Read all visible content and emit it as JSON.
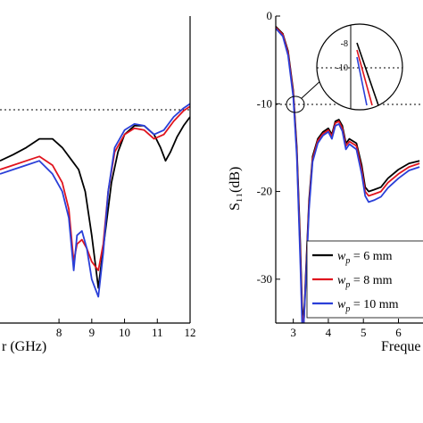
{
  "chart_data": [
    {
      "type": "line",
      "title": "",
      "xlabel": "r (GHz)",
      "ylabel": "",
      "xlim": [
        6.2,
        12
      ],
      "ylim": [
        -35,
        0
      ],
      "x_ticks": [
        "8",
        "9",
        "10",
        "11",
        "12"
      ],
      "y_ticks": [],
      "reference_line": {
        "y": -10,
        "style": "dotted"
      },
      "grid": false,
      "series": [
        {
          "key": "a_black",
          "color": "#000000",
          "x": [
            6.2,
            6.6,
            7.0,
            7.4,
            7.8,
            8.1,
            8.4,
            8.6,
            8.8,
            9.0,
            9.2,
            9.4,
            9.6,
            9.8,
            10.0,
            10.3,
            10.6,
            10.9,
            11.1,
            11.25,
            11.4,
            11.6,
            11.8,
            12.0
          ],
          "y": [
            -16.5,
            -15.8,
            -15.0,
            -14.0,
            -14.0,
            -15.0,
            -16.5,
            -17.5,
            -20.0,
            -25.0,
            -31.0,
            -25.0,
            -19.0,
            -15.5,
            -13.5,
            -12.5,
            -12.5,
            -13.5,
            -15.0,
            -16.5,
            -15.5,
            -13.8,
            -12.5,
            -11.5
          ]
        },
        {
          "key": "a_red",
          "color": "#e0141e",
          "x": [
            6.2,
            6.6,
            7.0,
            7.4,
            7.8,
            8.1,
            8.3,
            8.45,
            8.55,
            8.7,
            8.85,
            9.0,
            9.2,
            9.35,
            9.5,
            9.7,
            10.0,
            10.3,
            10.6,
            10.9,
            11.2,
            11.5,
            11.8,
            12.0
          ],
          "y": [
            -17.5,
            -17.0,
            -16.5,
            -16.0,
            -17.0,
            -19.0,
            -22.0,
            -28.0,
            -26.0,
            -25.5,
            -26.5,
            -28.0,
            -29.0,
            -26.0,
            -20.0,
            -15.5,
            -13.5,
            -12.8,
            -13.0,
            -14.0,
            -13.5,
            -12.0,
            -10.8,
            -10.3
          ]
        },
        {
          "key": "a_blue",
          "color": "#2a3fd8",
          "x": [
            6.2,
            6.6,
            7.0,
            7.4,
            7.8,
            8.1,
            8.3,
            8.45,
            8.55,
            8.7,
            8.85,
            9.0,
            9.2,
            9.35,
            9.5,
            9.7,
            10.0,
            10.3,
            10.6,
            10.9,
            11.2,
            11.5,
            11.8,
            12.0
          ],
          "y": [
            -18.0,
            -17.5,
            -17.0,
            -16.5,
            -18.0,
            -20.0,
            -23.0,
            -29.0,
            -25.0,
            -24.5,
            -26.5,
            -30.0,
            -32.0,
            -27.0,
            -20.0,
            -15.0,
            -13.0,
            -12.3,
            -12.5,
            -13.5,
            -13.0,
            -11.5,
            -10.5,
            -10.0
          ]
        }
      ]
    },
    {
      "type": "line",
      "title": "",
      "xlabel": "Freque",
      "ylabel": "S₁₁(dB)",
      "xlim": [
        2.5,
        6.7
      ],
      "ylim": [
        -35,
        0
      ],
      "x_ticks": [
        "3",
        "4",
        "5",
        "6"
      ],
      "y_ticks": [
        "0",
        "-10",
        "-20",
        "-30"
      ],
      "reference_line": {
        "y": -10,
        "style": "dotted"
      },
      "grid": false,
      "legend": {
        "position": "bottom-right",
        "entries": [
          {
            "label_main": "w",
            "label_sub": "p",
            "label_rest": " = 6 mm",
            "color": "#000000"
          },
          {
            "label_main": "w",
            "label_sub": "p",
            "label_rest": " = 8 mm",
            "color": "#e0141e"
          },
          {
            "label_main": "w",
            "label_sub": "p",
            "label_rest": " = 10 mm",
            "color": "#2a3fd8"
          }
        ]
      },
      "inset": {
        "y_ticks": [
          "-8",
          "-10"
        ],
        "shape": "circle",
        "zoom_of": {
          "x": 3.0,
          "y": -10
        }
      },
      "series": [
        {
          "key": "b_black",
          "color": "#000000",
          "x": [
            2.5,
            2.7,
            2.85,
            3.0,
            3.1,
            3.2,
            3.25,
            3.3,
            3.35,
            3.45,
            3.55,
            3.7,
            3.85,
            4.0,
            4.1,
            4.2,
            4.3,
            4.4,
            4.5,
            4.6,
            4.8,
            4.95,
            5.05,
            5.15,
            5.3,
            5.5,
            5.7,
            6.0,
            6.3,
            6.6
          ],
          "y": [
            -1.2,
            -2.0,
            -4.0,
            -8.5,
            -15.0,
            -26.0,
            -33.0,
            -35.0,
            -30.0,
            -21.0,
            -16.0,
            -14.0,
            -13.2,
            -12.8,
            -13.5,
            -12.0,
            -11.8,
            -12.5,
            -14.5,
            -14.0,
            -14.5,
            -17.0,
            -19.5,
            -20.0,
            -19.8,
            -19.5,
            -18.5,
            -17.5,
            -16.8,
            -16.5
          ]
        },
        {
          "key": "b_red",
          "color": "#e0141e",
          "x": [
            2.5,
            2.7,
            2.85,
            3.0,
            3.1,
            3.2,
            3.25,
            3.3,
            3.35,
            3.45,
            3.55,
            3.7,
            3.85,
            4.0,
            4.1,
            4.2,
            4.3,
            4.4,
            4.5,
            4.6,
            4.8,
            4.95,
            5.05,
            5.15,
            5.3,
            5.5,
            5.7,
            6.0,
            6.3,
            6.6
          ],
          "y": [
            -1.3,
            -2.1,
            -4.2,
            -8.8,
            -15.5,
            -27.0,
            -34.0,
            -35.0,
            -30.5,
            -21.5,
            -16.3,
            -14.2,
            -13.4,
            -13.0,
            -13.7,
            -12.2,
            -12.0,
            -12.8,
            -14.8,
            -14.3,
            -14.8,
            -17.5,
            -20.0,
            -20.5,
            -20.3,
            -20.0,
            -19.0,
            -18.0,
            -17.2,
            -16.8
          ]
        },
        {
          "key": "b_blue",
          "color": "#2a3fd8",
          "x": [
            2.5,
            2.7,
            2.85,
            3.0,
            3.1,
            3.2,
            3.25,
            3.3,
            3.35,
            3.45,
            3.55,
            3.7,
            3.85,
            4.0,
            4.1,
            4.2,
            4.3,
            4.4,
            4.5,
            4.6,
            4.8,
            4.95,
            5.05,
            5.15,
            5.3,
            5.5,
            5.7,
            6.0,
            6.3,
            6.6
          ],
          "y": [
            -1.4,
            -2.3,
            -4.5,
            -9.2,
            -16.0,
            -28.0,
            -35.0,
            -35.0,
            -31.0,
            -22.0,
            -16.6,
            -14.5,
            -13.6,
            -13.2,
            -14.0,
            -12.5,
            -12.3,
            -13.1,
            -15.2,
            -14.6,
            -15.2,
            -18.0,
            -20.5,
            -21.2,
            -21.0,
            -20.6,
            -19.6,
            -18.5,
            -17.6,
            -17.2
          ]
        }
      ]
    }
  ]
}
